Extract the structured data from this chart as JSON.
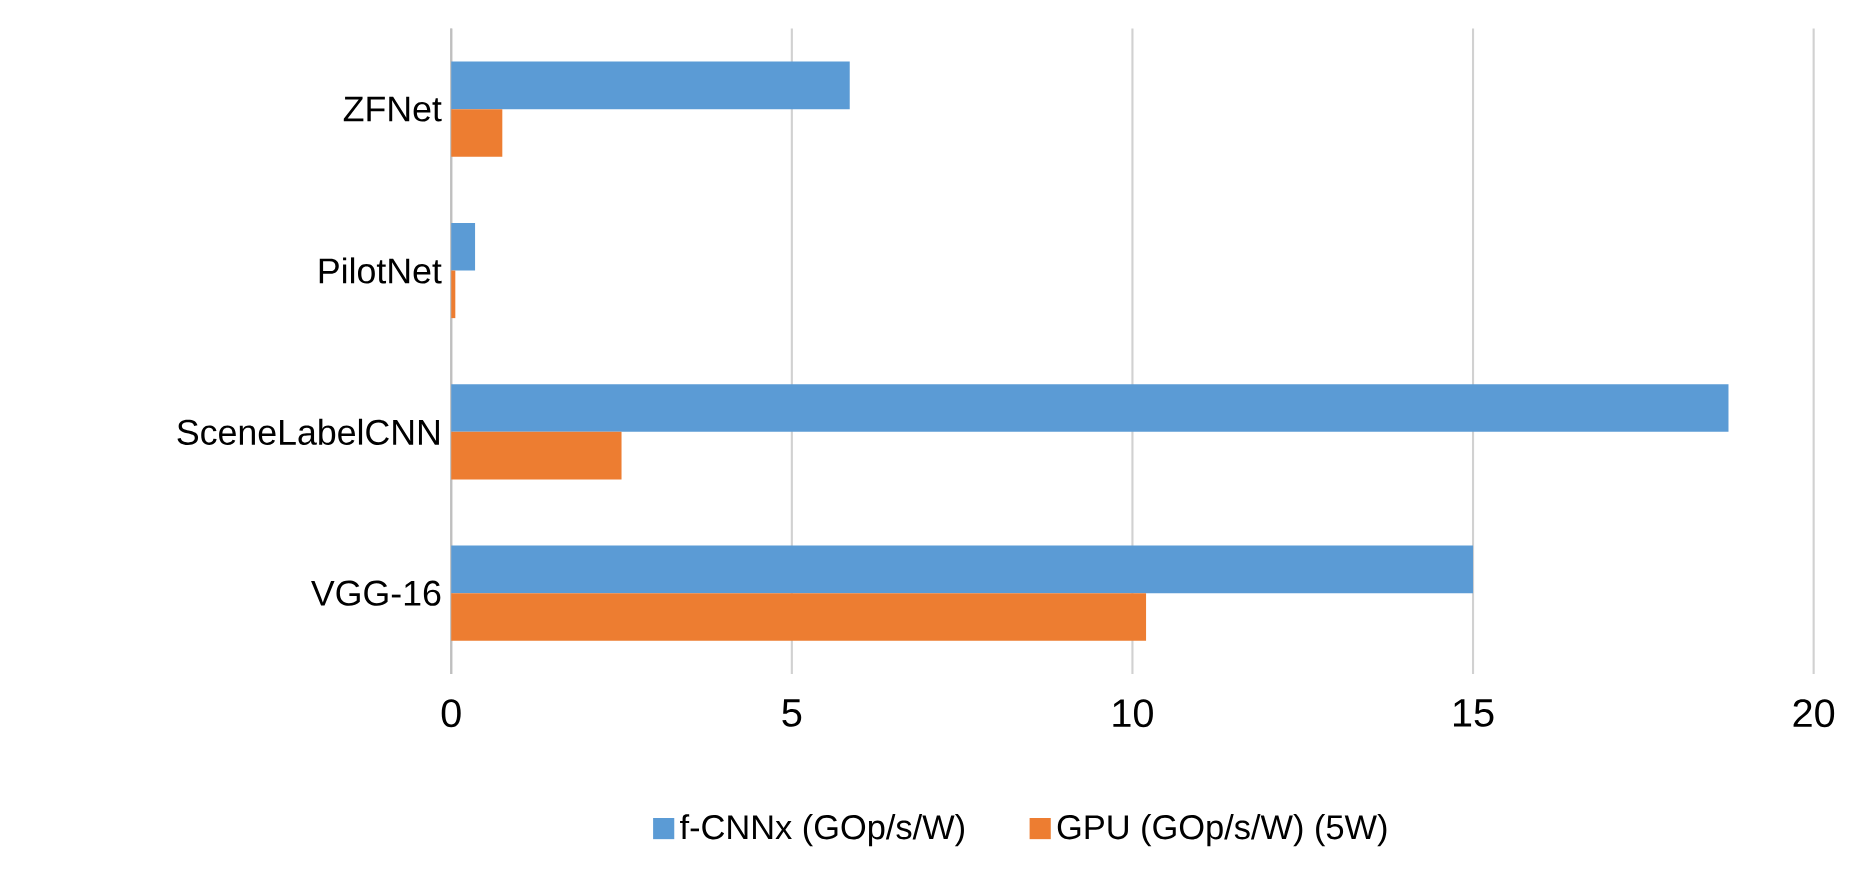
{
  "chart_data": {
    "type": "bar",
    "orientation": "horizontal",
    "categories": [
      "ZFNet",
      "PilotNet",
      "SceneLabelCNN",
      "VGG-16"
    ],
    "series": [
      {
        "name": "f-CNNx (GOp/s/W)",
        "color": "#5b9bd5",
        "values": [
          5.85,
          0.35,
          18.75,
          15.0
        ]
      },
      {
        "name": "GPU (GOp/s/W) (5W)",
        "color": "#ed7d31",
        "values": [
          0.75,
          0.06,
          2.5,
          10.2
        ]
      }
    ],
    "xlim": [
      0,
      20
    ],
    "xticks": [
      0,
      5,
      10,
      15,
      20
    ],
    "grid": "x",
    "legend": "bottom"
  }
}
